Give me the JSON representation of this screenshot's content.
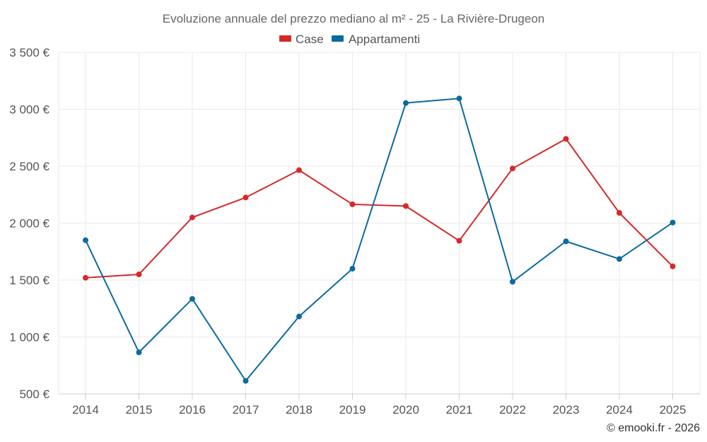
{
  "chart_data": {
    "type": "line",
    "title": "Evoluzione annuale del prezzo mediano al m² - 25 - La Rivière-Drugeon",
    "categories": [
      "2014",
      "2015",
      "2016",
      "2017",
      "2018",
      "2019",
      "2020",
      "2021",
      "2022",
      "2023",
      "2024",
      "2025"
    ],
    "series": [
      {
        "name": "Case",
        "color": "#d42a2a",
        "values": [
          1520,
          1550,
          2050,
          2225,
          2465,
          2165,
          2150,
          1845,
          2480,
          2740,
          2090,
          1620
        ]
      },
      {
        "name": "Appartamenti",
        "color": "#0b6aa0",
        "values": [
          1850,
          865,
          1335,
          615,
          1180,
          1600,
          3055,
          3095,
          1485,
          1840,
          1685,
          2005
        ]
      }
    ],
    "yticks": [
      500,
      1000,
      1500,
      2000,
      2500,
      3000,
      3500
    ],
    "ytick_labels": [
      "500 €",
      "1 000 €",
      "1 500 €",
      "2 000 €",
      "2 500 €",
      "3 000 €",
      "3 500 €"
    ],
    "ylim": [
      500,
      3500
    ],
    "xlabel": "",
    "ylabel": "",
    "legend_position": "top-center",
    "grid": true
  },
  "credit": "© emooki.fr - 2026"
}
